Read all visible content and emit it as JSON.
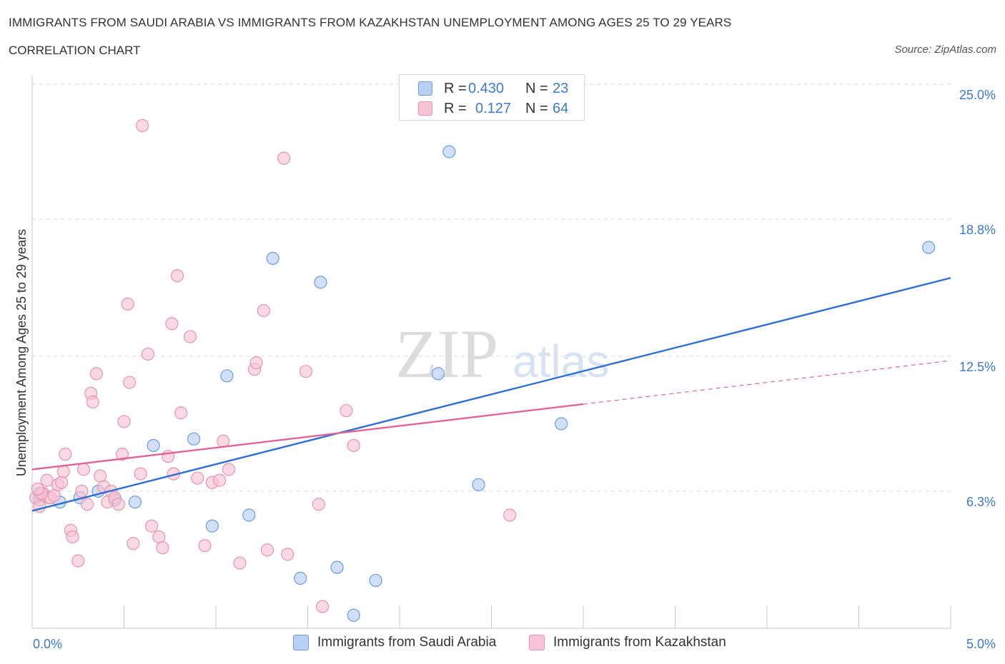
{
  "header": {
    "title": "IMMIGRANTS FROM SAUDI ARABIA VS IMMIGRANTS FROM KAZAKHSTAN UNEMPLOYMENT AMONG AGES 25 TO 29 YEARS",
    "subtitle": "CORRELATION CHART",
    "source": "Source: ZipAtlas.com"
  },
  "legend": {
    "series1": {
      "r_label": "R =",
      "r_value": "0.430",
      "n_label": "N =",
      "n_value": "23"
    },
    "series2": {
      "r_label": "R =",
      "r_value": "0.127",
      "n_label": "N =",
      "n_value": "64"
    }
  },
  "bottom_legend": {
    "series1": "Immigrants from Saudi Arabia",
    "series2": "Immigrants from Kazakhstan"
  },
  "colors": {
    "series1_fill": "#b8d0f5",
    "series1_stroke": "#6c9de0",
    "series1_line": "#2f6fd1",
    "series2_fill": "#f8c4d4",
    "series2_stroke": "#e994b0",
    "series2_line": "#e0649a",
    "grid": "#d9d9d9",
    "axis_text": "#3c78d8"
  },
  "chart_data": {
    "type": "scatter",
    "title": "IMMIGRANTS FROM SAUDI ARABIA VS IMMIGRANTS FROM KAZAKHSTAN UNEMPLOYMENT AMONG AGES 25 TO 29 YEARS",
    "xlabel": "",
    "ylabel": "Unemployment Among Ages 25 to 29 years",
    "xlim": [
      0,
      5
    ],
    "ylim": [
      0,
      25.0
    ],
    "x_tick_labels": [
      "0.0%",
      "5.0%"
    ],
    "y_ticks": [
      6.3,
      12.5,
      18.8,
      25.0
    ],
    "y_tick_labels": [
      "6.3%",
      "12.5%",
      "18.8%",
      "25.0%"
    ],
    "watermark": {
      "zip": "ZIP",
      "atlas": "atlas"
    },
    "series": [
      {
        "name": "Immigrants from Saudi Arabia",
        "R": 0.43,
        "N": 23,
        "points": [
          [
            0.04,
            6.2
          ],
          [
            0.15,
            5.8
          ],
          [
            0.26,
            6.0
          ],
          [
            0.36,
            6.3
          ],
          [
            0.45,
            5.9
          ],
          [
            0.56,
            5.8
          ],
          [
            0.66,
            8.4
          ],
          [
            0.88,
            8.7
          ],
          [
            0.98,
            4.7
          ],
          [
            1.06,
            11.6
          ],
          [
            1.18,
            5.2
          ],
          [
            1.31,
            17.0
          ],
          [
            1.46,
            2.3
          ],
          [
            1.57,
            15.9
          ],
          [
            1.66,
            2.8
          ],
          [
            1.75,
            0.6
          ],
          [
            1.87,
            2.2
          ],
          [
            2.21,
            11.7
          ],
          [
            2.27,
            21.9
          ],
          [
            2.43,
            6.6
          ],
          [
            2.88,
            9.4
          ],
          [
            4.88,
            17.5
          ],
          [
            0.04,
            5.9
          ]
        ],
        "trend": {
          "x0": 0,
          "y0": 5.4,
          "x1": 5,
          "y1": 16.1,
          "dash_after": null
        }
      },
      {
        "name": "Immigrants from Kazakhstan",
        "R": 0.127,
        "N": 64,
        "points": [
          [
            0.02,
            6.0
          ],
          [
            0.04,
            5.6
          ],
          [
            0.06,
            6.2
          ],
          [
            0.08,
            6.8
          ],
          [
            0.09,
            6.0
          ],
          [
            0.1,
            6.0
          ],
          [
            0.12,
            6.1
          ],
          [
            0.14,
            6.6
          ],
          [
            0.16,
            6.7
          ],
          [
            0.17,
            7.2
          ],
          [
            0.18,
            8.0
          ],
          [
            0.21,
            4.5
          ],
          [
            0.22,
            4.2
          ],
          [
            0.25,
            3.1
          ],
          [
            0.27,
            6.3
          ],
          [
            0.28,
            7.3
          ],
          [
            0.3,
            5.7
          ],
          [
            0.32,
            10.8
          ],
          [
            0.33,
            10.4
          ],
          [
            0.35,
            11.7
          ],
          [
            0.37,
            7.0
          ],
          [
            0.39,
            6.5
          ],
          [
            0.41,
            5.8
          ],
          [
            0.43,
            6.3
          ],
          [
            0.45,
            6.0
          ],
          [
            0.47,
            5.7
          ],
          [
            0.49,
            8.0
          ],
          [
            0.5,
            9.5
          ],
          [
            0.52,
            14.9
          ],
          [
            0.53,
            11.3
          ],
          [
            0.55,
            3.9
          ],
          [
            0.59,
            7.1
          ],
          [
            0.6,
            23.1
          ],
          [
            0.63,
            12.6
          ],
          [
            0.65,
            4.7
          ],
          [
            0.69,
            4.2
          ],
          [
            0.71,
            3.7
          ],
          [
            0.74,
            7.9
          ],
          [
            0.76,
            14.0
          ],
          [
            0.77,
            7.1
          ],
          [
            0.79,
            16.2
          ],
          [
            0.81,
            9.9
          ],
          [
            0.86,
            13.4
          ],
          [
            0.9,
            6.9
          ],
          [
            0.94,
            3.8
          ],
          [
            0.98,
            6.7
          ],
          [
            1.02,
            6.8
          ],
          [
            1.04,
            8.6
          ],
          [
            1.07,
            7.3
          ],
          [
            1.13,
            3.0
          ],
          [
            1.21,
            11.9
          ],
          [
            1.22,
            12.2
          ],
          [
            1.26,
            14.6
          ],
          [
            1.28,
            3.6
          ],
          [
            1.37,
            21.6
          ],
          [
            1.39,
            3.4
          ],
          [
            1.49,
            11.8
          ],
          [
            1.56,
            5.7
          ],
          [
            1.58,
            1.0
          ],
          [
            1.71,
            10.0
          ],
          [
            1.75,
            8.4
          ],
          [
            2.6,
            5.2
          ],
          [
            0.05,
            6.2
          ],
          [
            0.03,
            6.4
          ]
        ],
        "trend": {
          "x0": 0,
          "y0": 7.3,
          "x1": 5,
          "y1": 12.3,
          "dash_after": 3.0
        }
      }
    ]
  }
}
